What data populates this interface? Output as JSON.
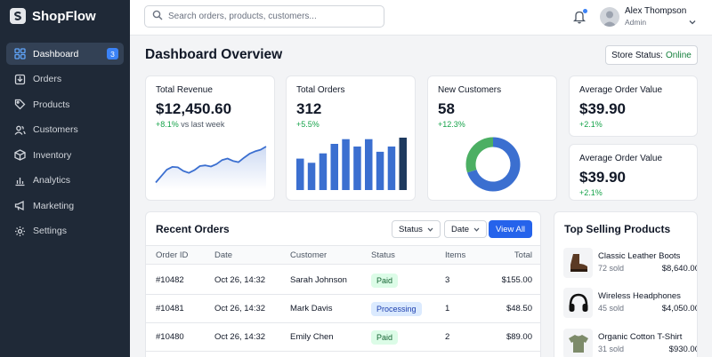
{
  "app": {
    "name": "ShopFlow"
  },
  "sidebar": {
    "items": [
      {
        "label": "Dashboard",
        "icon": "dashboard-icon",
        "badge": "3",
        "active": true
      },
      {
        "label": "Orders",
        "icon": "orders-icon"
      },
      {
        "label": "Products",
        "icon": "tag-icon"
      },
      {
        "label": "Customers",
        "icon": "users-icon"
      },
      {
        "label": "Inventory",
        "icon": "box-icon"
      },
      {
        "label": "Analytics",
        "icon": "bar-chart-icon"
      },
      {
        "label": "Marketing",
        "icon": "megaphone-icon"
      },
      {
        "label": "Settings",
        "icon": "gear-icon"
      }
    ]
  },
  "topbar": {
    "search_placeholder": "Search orders, products, customers...",
    "user": {
      "name": "Alex Thompson",
      "role": "Admin"
    }
  },
  "page": {
    "title": "Dashboard Overview",
    "store_status_label": "Store Status:",
    "store_status_value": "Online"
  },
  "kpis": {
    "revenue": {
      "label": "Total Revenue",
      "value": "$12,450.60",
      "change": "+8.1%",
      "change_suffix": "vs last week"
    },
    "orders": {
      "label": "Total Orders",
      "value": "312",
      "change": "+5.5%"
    },
    "customers": {
      "label": "New Customers",
      "value": "58",
      "change": "+12.3%"
    },
    "aov1": {
      "label": "Average Order Value",
      "value": "$39.90",
      "change": "+2.1%"
    },
    "aov2": {
      "label": "Average Order Value",
      "value": "$39.90",
      "change": "+2.1%"
    }
  },
  "chart_data": [
    {
      "type": "line",
      "x": [
        0,
        1,
        2,
        3,
        4,
        5,
        6,
        7,
        8,
        9,
        10,
        11,
        12,
        13,
        14,
        15,
        16,
        17,
        18,
        19,
        20
      ],
      "values": [
        1.0,
        2.6,
        4.2,
        4.9,
        4.8,
        3.9,
        3.4,
        4.1,
        5.1,
        5.3,
        5.0,
        5.6,
        6.6,
        7.0,
        6.4,
        6.1,
        7.2,
        8.2,
        8.8,
        9.2,
        10.0
      ],
      "ylim": [
        0,
        12
      ]
    },
    {
      "type": "bar",
      "categories": [
        "1",
        "2",
        "3",
        "4",
        "5",
        "6",
        "7",
        "8",
        "9",
        "10"
      ],
      "values": [
        6.0,
        5.2,
        7.0,
        8.8,
        9.7,
        8.3,
        9.7,
        7.3,
        8.3,
        10.0
      ],
      "ylim": [
        0,
        10.5
      ],
      "highlight_last": true
    },
    {
      "type": "pie",
      "donut": true,
      "values": [
        70,
        30
      ],
      "colors": [
        "#3b6fd0",
        "#4caf63"
      ]
    }
  ],
  "orders_table": {
    "title": "Recent Orders",
    "filters": {
      "status": "Status",
      "date": "Date"
    },
    "view_all": "View All",
    "columns": [
      "Order ID",
      "Date",
      "Customer",
      "Status",
      "Items",
      "Total"
    ],
    "rows": [
      {
        "id": "#10482",
        "date": "Oct 26, 14:32",
        "customer": "Sarah Johnson",
        "status": "Paid",
        "items": "3",
        "total": "$155.00"
      },
      {
        "id": "#10481",
        "date": "Oct 26, 14:32",
        "customer": "Mark Davis",
        "status": "Processing",
        "items": "1",
        "total": "$48.50"
      },
      {
        "id": "#10480",
        "date": "Oct 26, 14:32",
        "customer": "Emily Chen",
        "status": "Paid",
        "items": "2",
        "total": "$89.00"
      }
    ]
  },
  "top_selling": {
    "title": "Top Selling Products",
    "items": [
      {
        "name": "Classic Leather Boots",
        "sold": "72 sold",
        "revenue": "$8,640.00",
        "icon": "boot-icon"
      },
      {
        "name": "Wireless Headphones",
        "sold": "45 sold",
        "revenue": "$4,050.00",
        "icon": "headphones-icon"
      },
      {
        "name": "Organic Cotton T-Shirt",
        "sold": "31 sold",
        "revenue": "$930.00",
        "icon": "tshirt-icon"
      }
    ]
  },
  "colors": {
    "accent": "#2563eb",
    "sidebar": "#1f2937",
    "positive": "#16a34a"
  }
}
